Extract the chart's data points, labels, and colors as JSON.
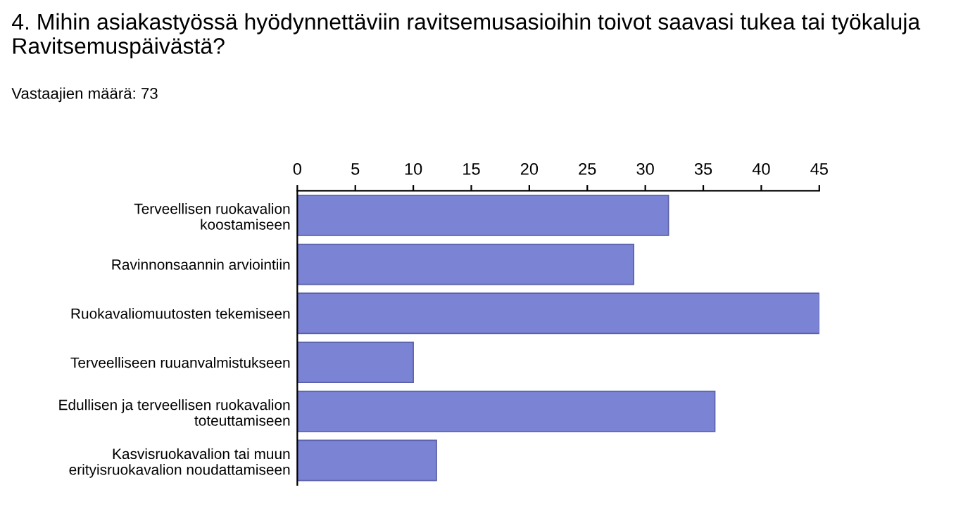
{
  "chart_data": {
    "type": "bar",
    "orientation": "horizontal",
    "title": "4. Mihin asiakastyössä hyödynnettäviin ravitsemusasioihin toivot saavasi tukea tai työkaluja Ravitsemuspäivästä?",
    "subtitle": "Vastaajien määrä: 73",
    "categories": [
      "Terveellisen ruokavalion\nkoostamiseen",
      "Ravinnonsaannin arviointiin",
      "Ruokavaliomuutosten tekemiseen",
      "Terveelliseen ruuanvalmistukseen",
      "Edullisen ja terveellisen ruokavalion\ntoteuttamiseen",
      "Kasvisruokavalion tai muun\nerityisruokavalion noudattamiseen"
    ],
    "values": [
      32,
      29,
      45,
      10,
      36,
      12
    ],
    "color": "#7b83d4",
    "xlim": [
      0,
      45
    ],
    "xticks": [
      0,
      5,
      10,
      15,
      20,
      25,
      30,
      35,
      40,
      45
    ],
    "grid": false,
    "legend": false
  }
}
